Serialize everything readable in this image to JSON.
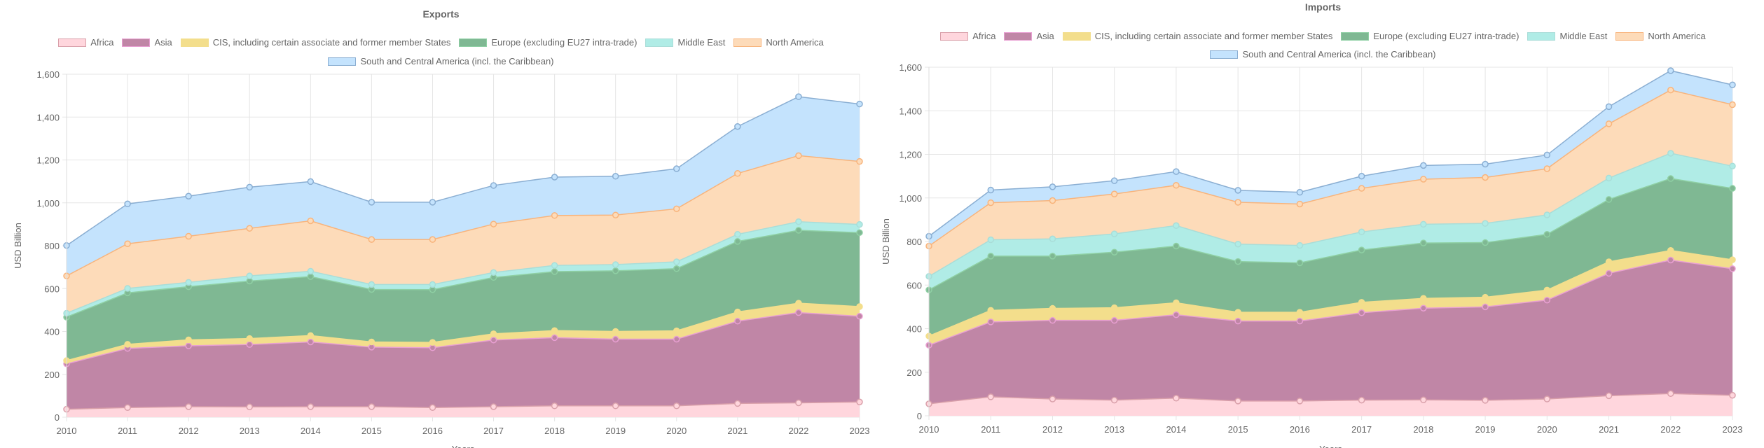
{
  "chart_data": [
    {
      "type": "area",
      "stacked": true,
      "title": "Exports",
      "xlabel": "Years",
      "ylabel": "USD Billion",
      "ylim": [
        0,
        1600
      ],
      "yticks": [
        "0",
        "200",
        "400",
        "600",
        "800",
        "1,000",
        "1,200",
        "1,400",
        "1,600"
      ],
      "grid": true,
      "legend_position": "top",
      "categories": [
        "2010",
        "2011",
        "2012",
        "2013",
        "2014",
        "2015",
        "2016",
        "2017",
        "2018",
        "2019",
        "2020",
        "2021",
        "2022",
        "2023"
      ],
      "series": [
        {
          "name": "Africa",
          "fill": "#ffd6dd",
          "border": "#d9a0aa",
          "values": [
            37,
            45,
            49,
            48,
            49,
            49,
            45,
            49,
            53,
            53,
            53,
            64,
            67,
            71
          ]
        },
        {
          "name": "Asia",
          "fill": "#c086a6",
          "border": "#e9a0d3",
          "values": [
            212,
            276,
            284,
            291,
            302,
            278,
            279,
            311,
            318,
            311,
            311,
            384,
            421,
            400
          ]
        },
        {
          "name": "CIS, including certain associate and former member States",
          "fill": "#f3de8c",
          "border": "#f3de8c",
          "values": [
            15,
            19,
            28,
            28,
            30,
            24,
            25,
            29,
            33,
            36,
            39,
            43,
            44,
            45
          ]
        },
        {
          "name": "Europe (excluding EU27 intra-trade)",
          "fill": "#7fb893",
          "border": "#8fd0a4",
          "values": [
            203,
            240,
            248,
            268,
            275,
            245,
            246,
            263,
            275,
            283,
            290,
            329,
            340,
            345
          ]
        },
        {
          "name": "Middle East",
          "fill": "#b0ece6",
          "border": "#a9ddd8",
          "values": [
            18,
            21,
            20,
            24,
            25,
            23,
            24,
            23,
            29,
            29,
            32,
            33,
            40,
            38
          ]
        },
        {
          "name": "North America",
          "fill": "#fddbb9",
          "border": "#f8b47c",
          "values": [
            174,
            208,
            215,
            222,
            235,
            210,
            210,
            226,
            233,
            231,
            247,
            284,
            308,
            294
          ]
        },
        {
          "name": "South and Central America (incl. the Caribbean)",
          "fill": "#c4e3fd",
          "border": "#8aaed2",
          "values": [
            142,
            186,
            187,
            192,
            183,
            174,
            174,
            180,
            179,
            181,
            187,
            219,
            275,
            268
          ]
        }
      ]
    },
    {
      "type": "area",
      "stacked": true,
      "title": "Imports",
      "xlabel": "Years",
      "ylabel": "USD Billion",
      "ylim": [
        0,
        1600
      ],
      "yticks": [
        "0",
        "200",
        "400",
        "600",
        "800",
        "1,000",
        "1,200",
        "1,400",
        "1,600"
      ],
      "grid": true,
      "legend_position": "top",
      "categories": [
        "2010",
        "2011",
        "2012",
        "2013",
        "2014",
        "2015",
        "2016",
        "2017",
        "2018",
        "2019",
        "2020",
        "2021",
        "2022",
        "2023"
      ],
      "series": [
        {
          "name": "Africa",
          "fill": "#ffd6dd",
          "border": "#d9a0aa",
          "values": [
            55,
            87,
            77,
            72,
            81,
            68,
            68,
            72,
            73,
            71,
            77,
            92,
            102,
            94
          ]
        },
        {
          "name": "Asia",
          "fill": "#c086a6",
          "border": "#e9a0d3",
          "values": [
            269,
            344,
            361,
            366,
            383,
            367,
            367,
            401,
            421,
            429,
            454,
            562,
            613,
            581
          ]
        },
        {
          "name": "CIS, including certain associate and former member States",
          "fill": "#f3de8c",
          "border": "#f3de8c",
          "values": [
            42,
            53,
            55,
            58,
            55,
            40,
            40,
            48,
            45,
            44,
            46,
            53,
            44,
            41
          ]
        },
        {
          "name": "Europe (excluding EU27 intra-trade)",
          "fill": "#7fb893",
          "border": "#8fd0a4",
          "values": [
            212,
            249,
            240,
            255,
            260,
            233,
            227,
            240,
            254,
            251,
            256,
            286,
            330,
            328
          ]
        },
        {
          "name": "Middle East",
          "fill": "#b0ece6",
          "border": "#a9ddd8",
          "values": [
            62,
            75,
            79,
            84,
            94,
            80,
            80,
            83,
            86,
            88,
            89,
            98,
            116,
            102
          ]
        },
        {
          "name": "North America",
          "fill": "#fddbb9",
          "border": "#f8b47c",
          "values": [
            139,
            170,
            176,
            183,
            185,
            192,
            190,
            200,
            207,
            211,
            212,
            249,
            290,
            282
          ]
        },
        {
          "name": "South and Central America (incl. the Caribbean)",
          "fill": "#c4e3fd",
          "border": "#8aaed2",
          "values": [
            45,
            58,
            63,
            61,
            63,
            55,
            54,
            56,
            63,
            61,
            63,
            79,
            89,
            91
          ]
        }
      ]
    }
  ]
}
